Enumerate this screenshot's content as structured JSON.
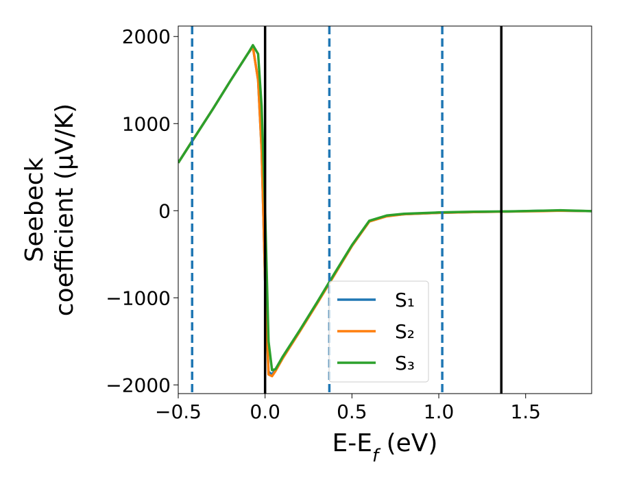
{
  "chart_data": {
    "type": "line",
    "xlabel": [
      "E-E",
      "f",
      " (eV)"
    ],
    "ylabel": [
      "Seebeck",
      "coefficient  (μV/K)"
    ],
    "x": [
      -0.5,
      -0.4,
      -0.3,
      -0.2,
      -0.1,
      -0.07,
      -0.04,
      -0.02,
      0.0,
      0.02,
      0.04,
      0.06,
      0.1,
      0.2,
      0.3,
      0.4,
      0.5,
      0.6,
      0.7,
      0.8,
      1.0,
      1.2,
      1.4,
      1.6,
      1.7,
      1.88
    ],
    "series": [
      {
        "name": "S₁",
        "color": "#1f77b4",
        "values": [
          550,
          860,
          1170,
          1490,
          1800,
          1880,
          1500,
          700,
          -800,
          -1850,
          -1880,
          -1820,
          -1690,
          -1380,
          -1060,
          -730,
          -400,
          -120,
          -60,
          -40,
          -25,
          -15,
          -10,
          0,
          0,
          -5
        ]
      },
      {
        "name": "S₂",
        "color": "#ff7f0e",
        "values": [
          550,
          860,
          1170,
          1490,
          1800,
          1880,
          1500,
          700,
          -800,
          -1880,
          -1900,
          -1840,
          -1700,
          -1385,
          -1065,
          -735,
          -405,
          -125,
          -65,
          -40,
          -25,
          -15,
          -10,
          -5,
          0,
          -5
        ]
      },
      {
        "name": "S₃",
        "color": "#2ca02c",
        "values": [
          550,
          860,
          1170,
          1490,
          1800,
          1900,
          1800,
          1200,
          0,
          -1500,
          -1830,
          -1820,
          -1680,
          -1370,
          -1050,
          -720,
          -395,
          -115,
          -55,
          -35,
          -20,
          -12,
          -8,
          0,
          5,
          -5
        ]
      }
    ],
    "xlim": [
      -0.5,
      1.88
    ],
    "ylim": [
      -2100,
      2120
    ],
    "xticks": [
      {
        "value": -0.5,
        "label": "−0.5"
      },
      {
        "value": 0,
        "label": "0.0"
      },
      0.5,
      {
        "value": 1,
        "label": "1.0"
      },
      1.5
    ],
    "yticks": [
      {
        "value": -2000,
        "label": "−2000"
      },
      {
        "value": -1000,
        "label": "−1000"
      },
      0,
      1000,
      2000
    ],
    "vlines": [
      {
        "x": -0.42,
        "color": "#1f77b4",
        "style": "dashed"
      },
      {
        "x": 0.0,
        "color": "#000000",
        "style": "solid"
      },
      {
        "x": 0.37,
        "color": "#1f77b4",
        "style": "dashed"
      },
      {
        "x": 1.02,
        "color": "#1f77b4",
        "style": "dashed"
      },
      {
        "x": 1.36,
        "color": "#000000",
        "style": "solid"
      }
    ],
    "legend": "lower center"
  }
}
